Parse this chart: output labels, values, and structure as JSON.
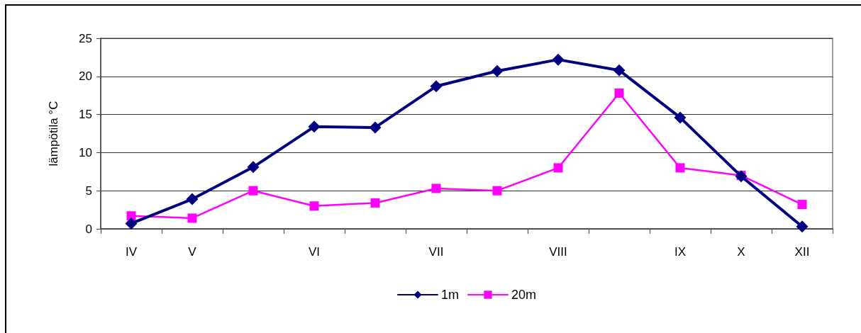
{
  "chart_data": {
    "type": "line",
    "ylabel": "lämpötila °C",
    "categories": [
      "IV",
      "V",
      null,
      "VI",
      null,
      "VII",
      null,
      "VIII",
      null,
      "IX",
      "X",
      "XII"
    ],
    "series": [
      {
        "name": "1m",
        "color": "#000080",
        "marker": "diamond",
        "values": [
          0.7,
          3.9,
          8.1,
          13.4,
          13.3,
          18.7,
          20.7,
          22.2,
          20.8,
          14.6,
          6.9,
          0.3
        ]
      },
      {
        "name": "20m",
        "color": "#ff00ff",
        "marker": "square",
        "values": [
          1.7,
          1.4,
          5.0,
          3.0,
          3.4,
          5.3,
          5.0,
          8.0,
          17.8,
          8.0,
          7.0,
          3.2
        ]
      }
    ],
    "ylim": [
      0,
      25
    ],
    "yticks": [
      0,
      5,
      10,
      15,
      20,
      25
    ],
    "grid": "y",
    "legend": "bottom",
    "line_style": "solid"
  }
}
